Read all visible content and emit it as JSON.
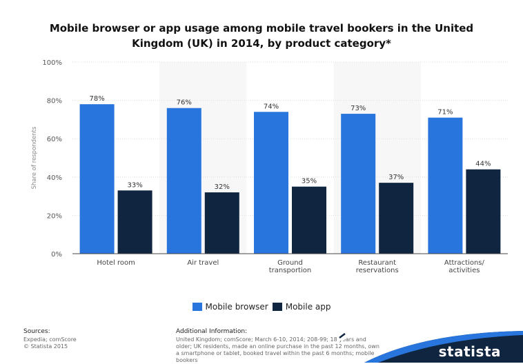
{
  "title": "Mobile browser or app usage among mobile travel bookers in the United Kingdom (UK) in 2014, by product category*",
  "chart_data": {
    "type": "bar",
    "title": "Mobile browser or app usage among mobile travel bookers in the United Kingdom (UK) in 2014, by product category*",
    "ylabel": "Share of respondents",
    "ylim": [
      0,
      100
    ],
    "yticks": [
      "0%",
      "20%",
      "40%",
      "60%",
      "80%",
      "100%"
    ],
    "categories": [
      [
        "Hotel room"
      ],
      [
        "Air travel"
      ],
      [
        "Ground",
        "transportion"
      ],
      [
        "Restaurant",
        "reservations"
      ],
      [
        "Attractions/",
        "activities"
      ]
    ],
    "series": [
      {
        "name": "Mobile browser",
        "color": "#2876dd",
        "values": [
          78,
          76,
          74,
          73,
          71
        ],
        "labels": [
          "78%",
          "76%",
          "74%",
          "73%",
          "71%"
        ]
      },
      {
        "name": "Mobile app",
        "color": "#10253f",
        "values": [
          33,
          32,
          35,
          37,
          44
        ],
        "labels": [
          "33%",
          "32%",
          "35%",
          "37%",
          "44%"
        ]
      }
    ],
    "grid": true,
    "legend_position": "bottom"
  },
  "legend": [
    {
      "label": "Mobile browser",
      "color": "#2876dd"
    },
    {
      "label": "Mobile app",
      "color": "#10253f"
    }
  ],
  "sources": {
    "heading": "Sources:",
    "lines": [
      "Expedia; comScore",
      "© Statista 2015"
    ]
  },
  "additional_info": {
    "heading": "Additional Information:",
    "text": "United Kingdom; comScore; March 6-10, 2014; 208-99; 18 years and older; UK residents, made an online purchase in the past 12 months, own a smartphone or tablet, booked travel within the past 6 months; mobile bookers"
  },
  "brand": {
    "name": "statista",
    "color": "#10253f"
  }
}
